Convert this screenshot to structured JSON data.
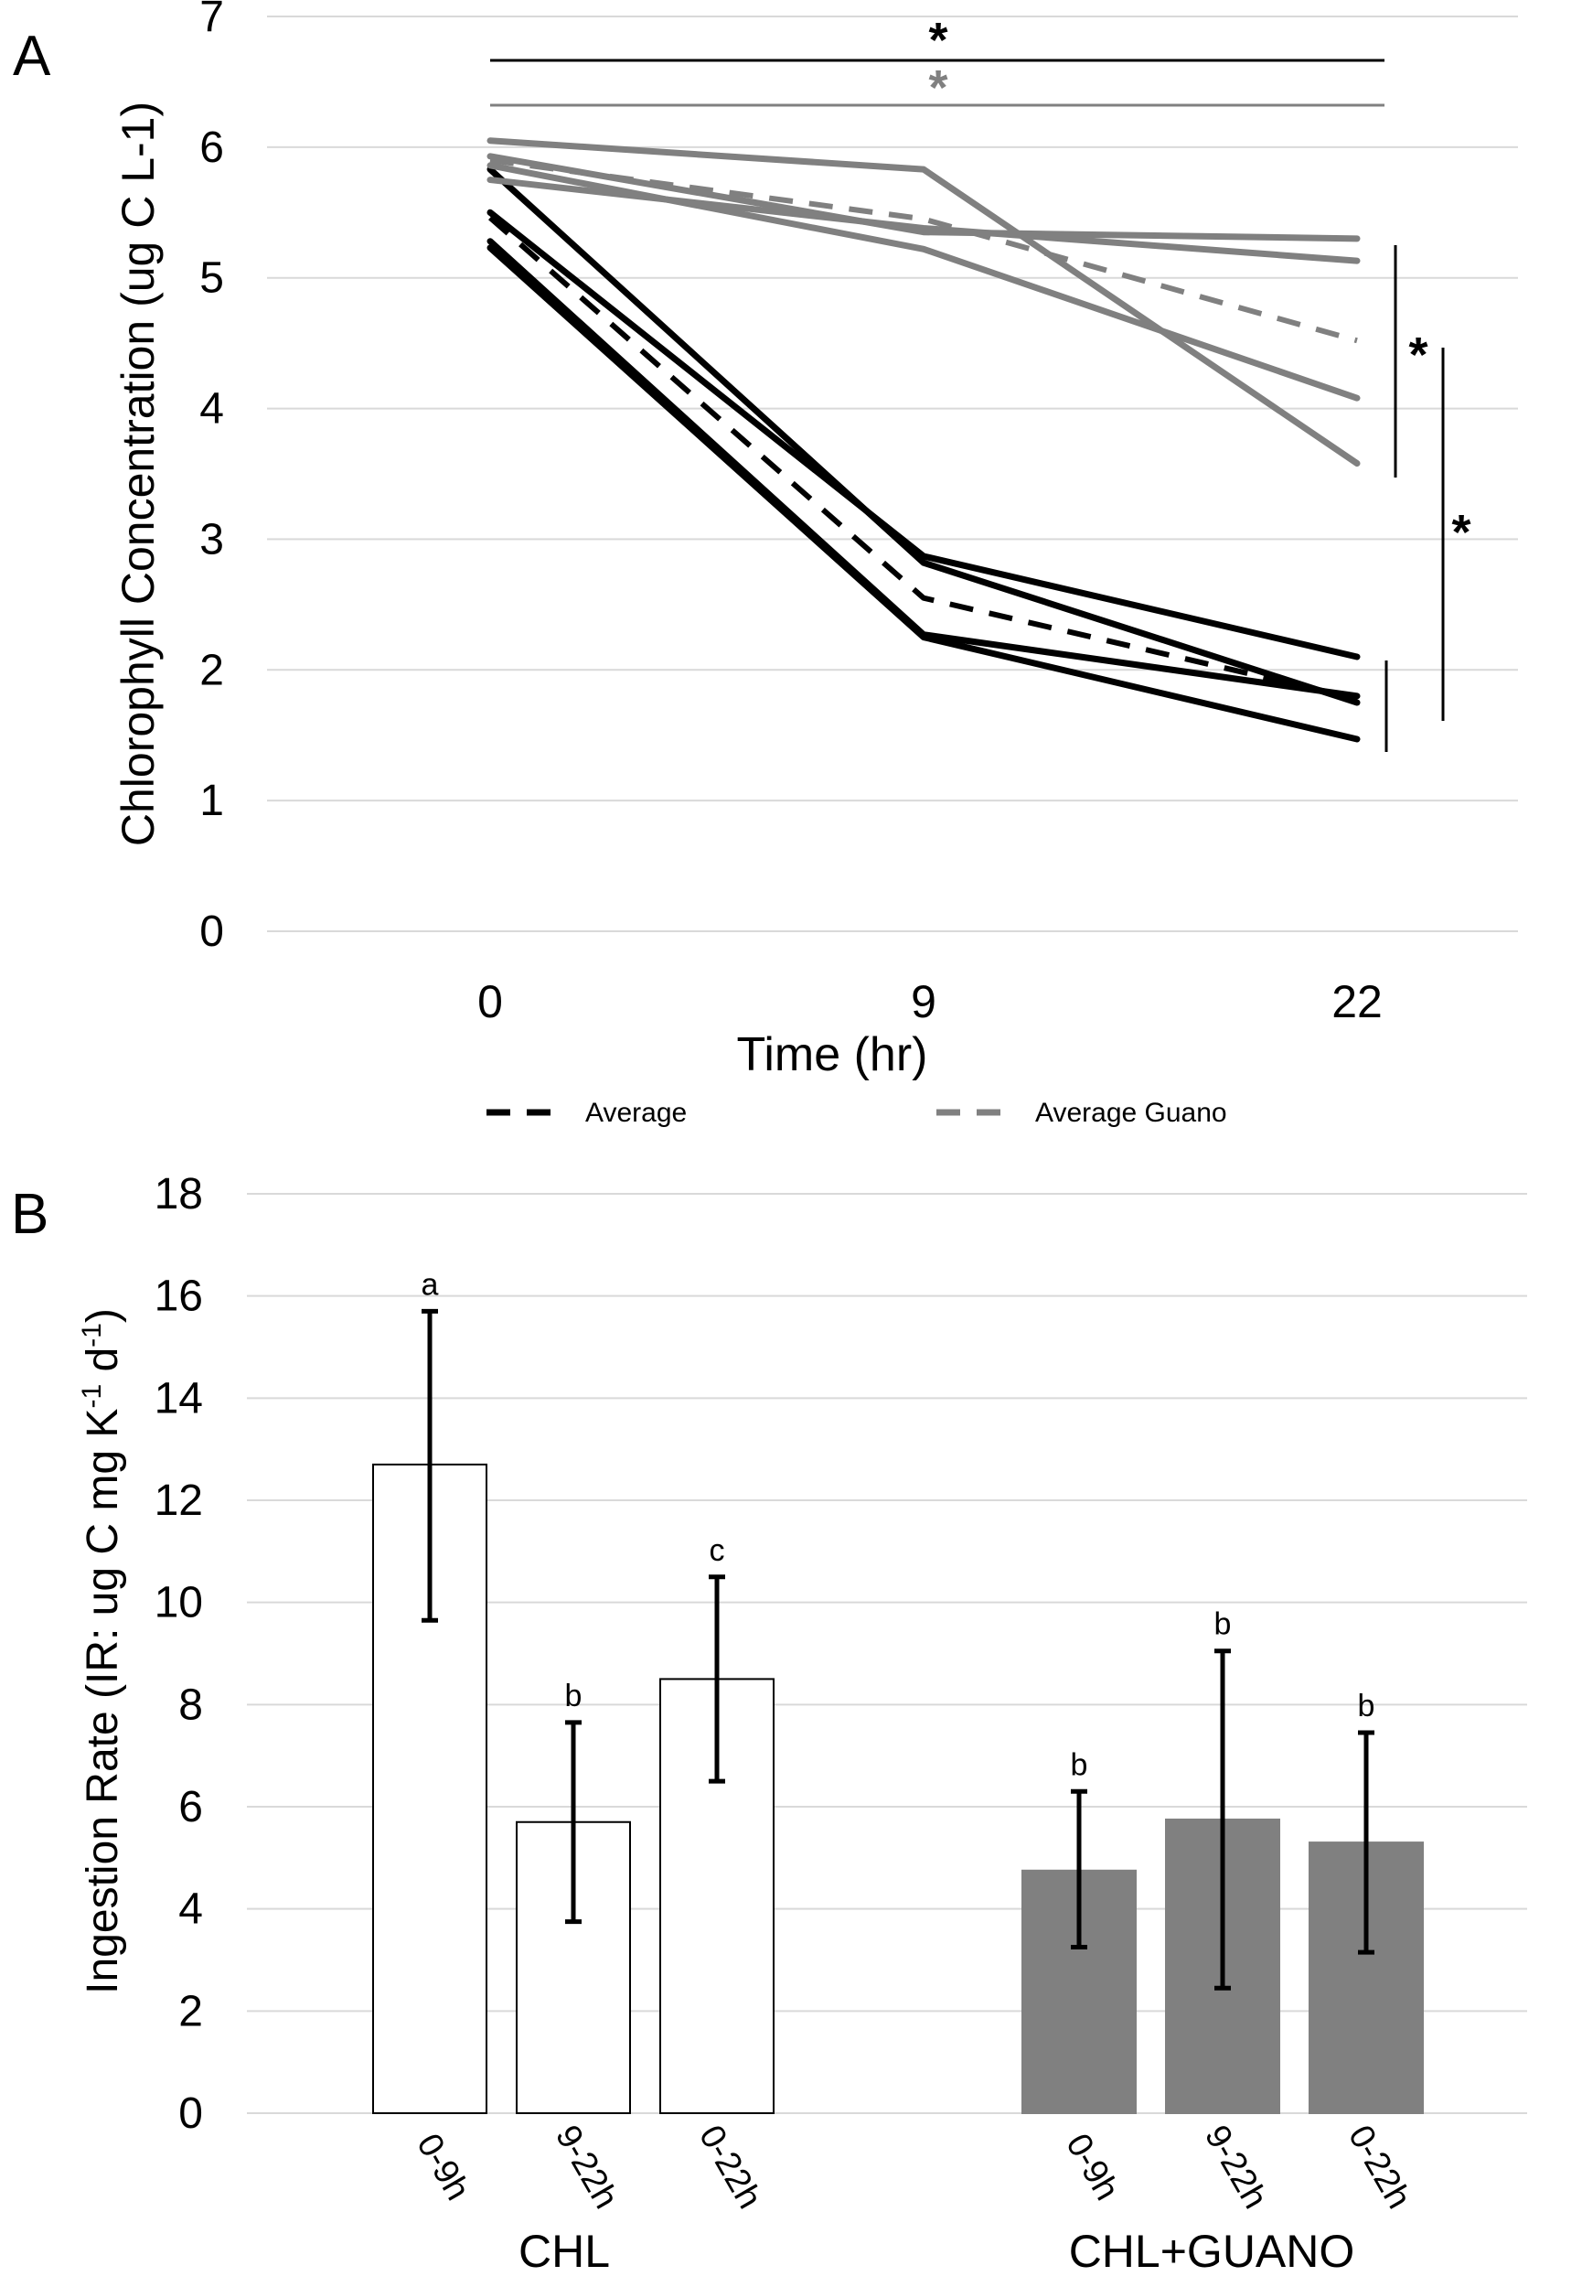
{
  "figure_colors": {
    "control": "#000000",
    "guano": "#808080",
    "grid": "#d9d9d9",
    "bar_control_fill": "#ffffff",
    "bar_guano_fill": "#808080"
  },
  "chart_data": [
    {
      "panel_label": "A",
      "type": "line",
      "title": "",
      "xlabel": "Time (hr)",
      "ylabel": "Chlorophyll Concentration (ug C L-1)",
      "categories": [
        "0",
        "9",
        "22"
      ],
      "ylim": [
        0,
        7
      ],
      "y_ticks": [
        "0",
        "1",
        "2",
        "3",
        "4",
        "5",
        "6",
        "7"
      ],
      "grid": true,
      "legend_position": "bottom",
      "series": [
        {
          "group": "control",
          "style": "solid",
          "values": [
            5.83,
            2.82,
            1.75
          ]
        },
        {
          "group": "control",
          "style": "solid",
          "values": [
            5.5,
            2.87,
            2.1
          ]
        },
        {
          "group": "control",
          "style": "solid",
          "values": [
            5.28,
            2.27,
            1.8
          ]
        },
        {
          "group": "control",
          "style": "solid",
          "values": [
            5.23,
            2.25,
            1.47
          ]
        },
        {
          "group": "control",
          "style": "dashed",
          "name": "Average",
          "values": [
            5.46,
            2.55,
            1.78
          ]
        },
        {
          "group": "guano",
          "style": "solid",
          "values": [
            6.05,
            5.83,
            3.58
          ]
        },
        {
          "group": "guano",
          "style": "solid",
          "values": [
            5.93,
            5.35,
            5.3
          ]
        },
        {
          "group": "guano",
          "style": "solid",
          "values": [
            5.86,
            5.22,
            4.08
          ]
        },
        {
          "group": "guano",
          "style": "solid",
          "values": [
            5.75,
            5.38,
            5.13
          ]
        },
        {
          "group": "guano",
          "style": "dashed",
          "name": "Average Guano",
          "values": [
            5.9,
            5.45,
            4.52
          ]
        }
      ],
      "significance_marks": [
        "*",
        "*",
        "*",
        "*"
      ]
    },
    {
      "panel_label": "B",
      "type": "bar",
      "title": "",
      "xlabel": "",
      "ylabel": "Ingestion Rate (IR: ug C mg K",
      "ylabel_parts": {
        "main": "Ingestion Rate (IR: ug C mg K",
        "sup1": "-1",
        "mid": " d",
        "sup2": "-1",
        "end": ")"
      },
      "ylim": [
        0,
        18
      ],
      "y_ticks": [
        "0",
        "2",
        "4",
        "6",
        "8",
        "10",
        "12",
        "14",
        "16",
        "18"
      ],
      "grid": true,
      "groups": [
        {
          "name": "CHL",
          "fill": "white",
          "bars": [
            {
              "label": "0-9h",
              "value": 12.7,
              "err_low": 9.65,
              "err_high": 15.7,
              "letter": "a"
            },
            {
              "label": "9-22h",
              "value": 5.7,
              "err_low": 3.75,
              "err_high": 7.65,
              "letter": "b"
            },
            {
              "label": "0-22h",
              "value": 8.5,
              "err_low": 6.5,
              "err_high": 10.5,
              "letter": "c"
            }
          ]
        },
        {
          "name": "CHL+GUANO",
          "fill": "gray",
          "bars": [
            {
              "label": "0-9h",
              "value": 4.75,
              "err_low": 3.25,
              "err_high": 6.3,
              "letter": "b"
            },
            {
              "label": "9-22h",
              "value": 5.75,
              "err_low": 2.45,
              "err_high": 9.05,
              "letter": "b"
            },
            {
              "label": "0-22h",
              "value": 5.3,
              "err_low": 3.15,
              "err_high": 7.45,
              "letter": "b"
            }
          ]
        }
      ]
    }
  ]
}
